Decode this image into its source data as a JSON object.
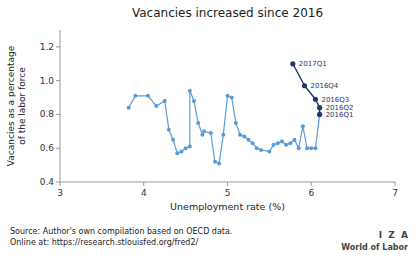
{
  "chart_data": {
    "type": "line",
    "title": "Vacancies increased since 2016",
    "x_label": "Unemployment rate (%)",
    "y_label": "Vacancies as a percentage\nof the labor force",
    "xlim": [
      3,
      7
    ],
    "ylim": [
      0.4,
      1.3
    ],
    "xticks": [
      3,
      4,
      5,
      6,
      7
    ],
    "yticks": [
      0.4,
      0.6,
      0.8,
      {
        "value": 1.0,
        "label": "1.0"
      },
      1.2
    ],
    "grid": false,
    "series": [
      {
        "color": "#5b9bd5",
        "marker": "circle",
        "x": [
          3.82,
          3.9,
          4.05,
          4.15,
          4.25,
          4.3,
          4.35,
          4.4,
          4.45,
          4.5,
          4.55,
          4.55,
          4.6,
          4.65,
          4.7,
          4.72,
          4.8,
          4.85,
          4.9,
          4.95,
          5.0,
          5.05,
          5.1,
          5.15,
          5.2,
          5.25,
          5.3,
          5.35,
          5.4,
          5.5,
          5.55,
          5.6,
          5.65,
          5.7,
          5.75,
          5.8,
          5.85,
          5.9,
          5.95,
          6.0,
          6.05
        ],
        "values": [
          0.84,
          0.91,
          0.91,
          0.85,
          0.88,
          0.71,
          0.65,
          0.57,
          0.58,
          0.6,
          0.61,
          0.94,
          0.88,
          0.75,
          0.68,
          0.7,
          0.69,
          0.52,
          0.51,
          0.68,
          0.91,
          0.9,
          0.75,
          0.68,
          0.67,
          0.65,
          0.63,
          0.6,
          0.59,
          0.58,
          0.62,
          0.63,
          0.64,
          0.62,
          0.63,
          0.65,
          0.6,
          0.73,
          0.6,
          0.6,
          0.6
        ]
      },
      {
        "color": "#1f3864",
        "marker": "circle",
        "x": [
          6.1,
          6.1,
          6.05,
          5.92,
          5.78
        ],
        "values": [
          0.8,
          0.84,
          0.89,
          0.97,
          1.1
        ],
        "labels": [
          "2016Q1",
          "2016Q2",
          "2016Q3",
          "2016Q4",
          "2017Q1"
        ]
      }
    ],
    "source": [
      "Source: Author's own compilation based on OECD data.",
      "Online at: https://research.stlouisfed.org/fred2/"
    ],
    "annotations": [
      "I  Z  A",
      "World of Labor"
    ]
  }
}
